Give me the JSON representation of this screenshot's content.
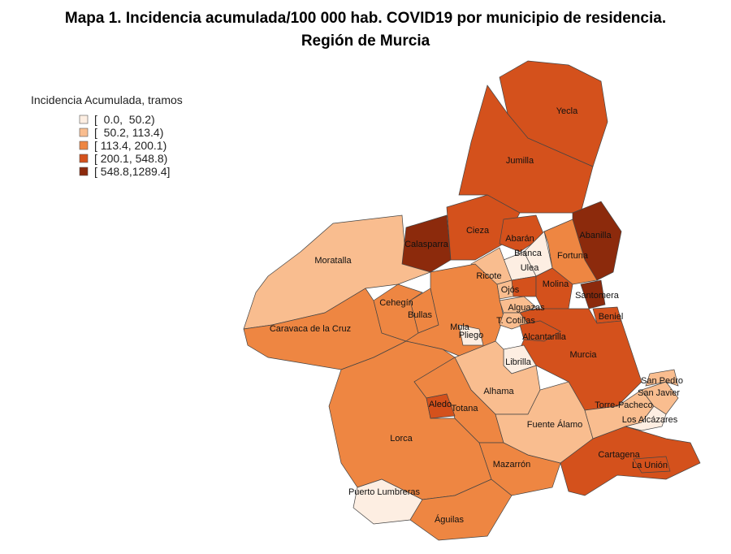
{
  "title": "Mapa 1. Incidencia acumulada/100 000 hab. COVID19 por municipio de residencia.",
  "subtitle": "Región de Murcia",
  "legend": {
    "title": "Incidencia Acumulada, tramos",
    "items": [
      {
        "label": "[  0.0,  50.2)",
        "color": "#fdeee2"
      },
      {
        "label": "[  50.2, 113.4)",
        "color": "#f9bd8f"
      },
      {
        "label": "[ 113.4, 200.1)",
        "color": "#ee8642"
      },
      {
        "label": "[ 200.1, 548.8)",
        "color": "#d4511c"
      },
      {
        "label": "[ 548.8,1289.4]",
        "color": "#8c2a0c"
      }
    ]
  },
  "regions": [
    {
      "name": "Jumilla",
      "color": "#d4511c"
    },
    {
      "name": "Yecla",
      "color": "#d4511c"
    },
    {
      "name": "Abanilla",
      "color": "#8c2a0c"
    },
    {
      "name": "Fortuna",
      "color": "#ee8642"
    },
    {
      "name": "Moratalla",
      "color": "#f9bd8f"
    },
    {
      "name": "Calasparra",
      "color": "#8c2a0c"
    },
    {
      "name": "Cieza",
      "color": "#d4511c"
    },
    {
      "name": "Abarán",
      "color": "#d4511c"
    },
    {
      "name": "Blanca",
      "color": "#fdeee2"
    },
    {
      "name": "Ulea",
      "color": "#fdeee2"
    },
    {
      "name": "Ricote",
      "color": "#f9bd8f"
    },
    {
      "color": "#d4511c"
    },
    {
      "name": "Ojós",
      "color": "#f9bd8f"
    },
    {
      "name": "Molina",
      "color": "#d4511c"
    },
    {
      "name": "Santomera",
      "color": "#8c2a0c"
    },
    {
      "name": "Beniel",
      "color": "#d4511c"
    },
    {
      "name": "Caravaca de la Cruz",
      "color": "#ee8642"
    },
    {
      "name": "Cehegín",
      "color": "#ee8642"
    },
    {
      "name": "Bullas",
      "color": "#ee8642"
    },
    {
      "name": "Mula",
      "color": "#ee8642"
    },
    {
      "name": "Pliego",
      "color": "#fdeee2"
    },
    {
      "name": "Alguazas",
      "color": "#f9bd8f"
    },
    {
      "name": "T. Cotillas",
      "color": "#f9bd8f"
    },
    {
      "name": "Murcia",
      "color": "#d4511c"
    },
    {
      "name": "Alcantarilla",
      "color": "#d4511c"
    },
    {
      "name": "Librilla",
      "color": "#fdeee2"
    },
    {
      "name": "Alhama",
      "color": "#f9bd8f"
    },
    {
      "name": "Lorca",
      "color": "#ee8642"
    },
    {
      "name": "Totana",
      "color": "#ee8642"
    },
    {
      "name": "Aledo",
      "color": "#d4511c"
    },
    {
      "name": "Puerto Lumbreras",
      "color": "#fdeee2"
    },
    {
      "name": "Águilas",
      "color": "#ee8642"
    },
    {
      "name": "Mazarrón",
      "color": "#ee8642"
    },
    {
      "name": "Fuente Álamo",
      "color": "#f9bd8f"
    },
    {
      "name": "Cartagena",
      "color": "#d4511c"
    },
    {
      "name": "La Unión",
      "color": "#d4511c"
    },
    {
      "name": "Torre-Pacheco",
      "color": "#f9bd8f"
    },
    {
      "name": "San Javier",
      "color": "#f9bd8f"
    },
    {
      "name": "San Pedro",
      "color": "#f9bd8f"
    },
    {
      "name": "Los Alcázares",
      "color": "#fdeee2"
    }
  ]
}
